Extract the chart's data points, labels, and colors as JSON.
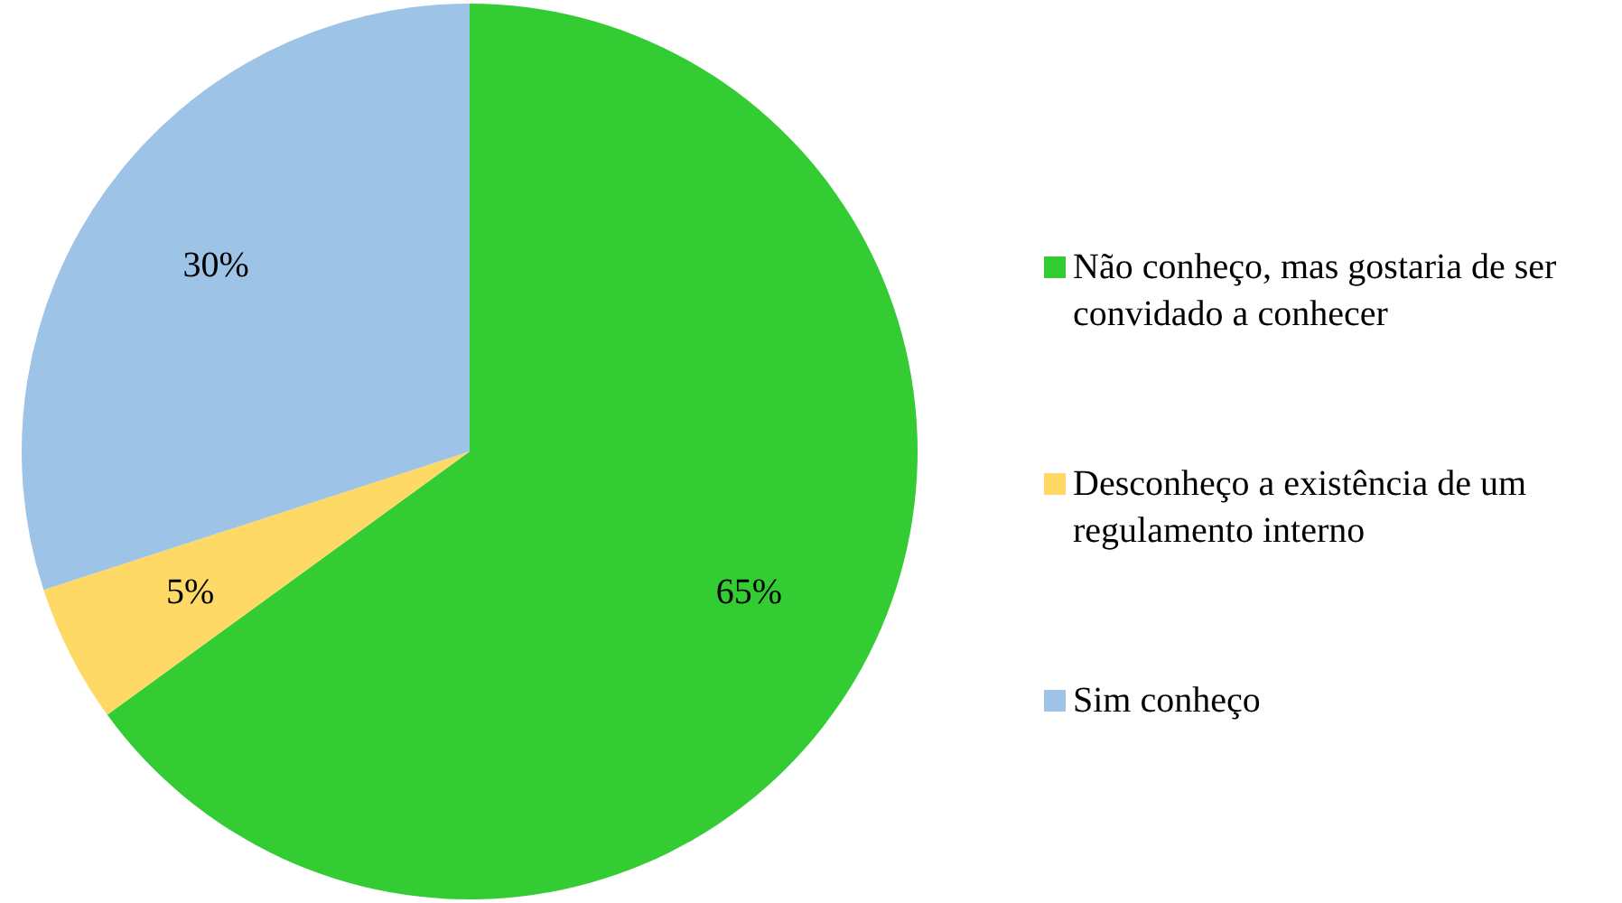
{
  "chart_data": {
    "type": "pie",
    "categories": [
      "Não conheço, mas gostaria de ser convidado a conhecer",
      "Desconheço a existência de um regulamento interno",
      "Sim conheço"
    ],
    "values": [
      65,
      5,
      30
    ],
    "colors": [
      "#33cc33",
      "#ffd966",
      "#9dc3e6"
    ],
    "value_labels": [
      "65%",
      "5%",
      "30%"
    ],
    "legend": "right"
  }
}
